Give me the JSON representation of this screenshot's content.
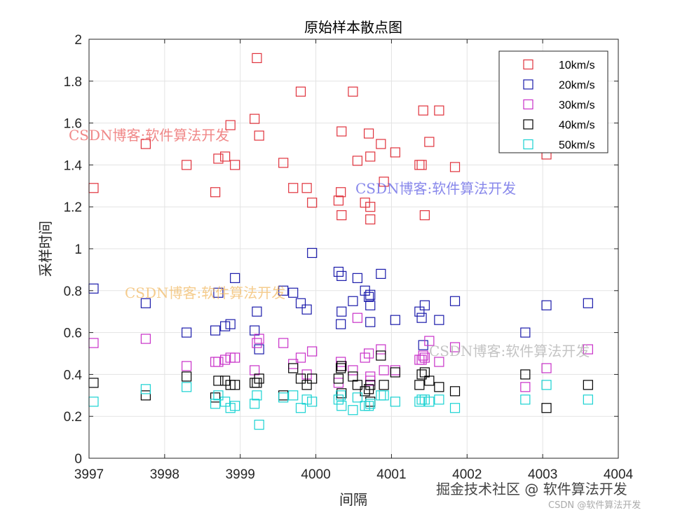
{
  "chart_data": {
    "type": "scatter",
    "title": "原始样本散点图",
    "xlabel": "间隔",
    "ylabel": "采样时间",
    "xlim": [
      3997,
      4004
    ],
    "ylim": [
      0,
      2
    ],
    "xticks": [
      3997,
      3998,
      3999,
      4000,
      4001,
      4002,
      4003,
      4004
    ],
    "yticks": [
      0,
      0.2,
      0.4,
      0.6,
      0.8,
      1,
      1.2,
      1.4,
      1.6,
      1.8,
      2
    ],
    "grid": true,
    "legend_position": "top-right",
    "marker": "square",
    "series": [
      {
        "name": "10km/s",
        "color": "#e0323c",
        "points": [
          [
            3997.06,
            1.29
          ],
          [
            3997.75,
            1.5
          ],
          [
            3998.29,
            1.4
          ],
          [
            3998.67,
            1.27
          ],
          [
            3998.71,
            1.43
          ],
          [
            3998.8,
            1.44
          ],
          [
            3998.87,
            1.59
          ],
          [
            3998.93,
            1.4
          ],
          [
            3999.19,
            1.62
          ],
          [
            3999.22,
            1.91
          ],
          [
            3999.25,
            1.54
          ],
          [
            3999.57,
            1.41
          ],
          [
            3999.7,
            1.29
          ],
          [
            3999.8,
            1.75
          ],
          [
            3999.88,
            1.29
          ],
          [
            3999.95,
            1.22
          ],
          [
            4000.3,
            1.23
          ],
          [
            4000.33,
            1.27
          ],
          [
            4000.34,
            1.56
          ],
          [
            4000.34,
            1.16
          ],
          [
            4000.49,
            1.75
          ],
          [
            4000.55,
            1.42
          ],
          [
            4000.65,
            1.22
          ],
          [
            4000.7,
            1.55
          ],
          [
            4000.72,
            1.44
          ],
          [
            4000.72,
            1.2
          ],
          [
            4000.72,
            1.14
          ],
          [
            4000.86,
            1.5
          ],
          [
            4000.9,
            1.32
          ],
          [
            4001.05,
            1.46
          ],
          [
            4001.37,
            1.4
          ],
          [
            4001.4,
            1.4
          ],
          [
            4001.42,
            1.66
          ],
          [
            4001.44,
            1.16
          ],
          [
            4001.5,
            1.51
          ],
          [
            4001.63,
            1.66
          ],
          [
            4001.84,
            1.39
          ],
          [
            4003.05,
            1.45
          ]
        ]
      },
      {
        "name": "20km/s",
        "color": "#1a1aaa",
        "points": [
          [
            3997.06,
            0.81
          ],
          [
            3997.75,
            0.74
          ],
          [
            3998.29,
            0.6
          ],
          [
            3998.67,
            0.61
          ],
          [
            3998.71,
            0.79
          ],
          [
            3998.8,
            0.63
          ],
          [
            3998.87,
            0.64
          ],
          [
            3998.93,
            0.86
          ],
          [
            3999.19,
            0.61
          ],
          [
            3999.22,
            0.7
          ],
          [
            3999.25,
            0.52
          ],
          [
            3999.57,
            0.8
          ],
          [
            3999.7,
            0.79
          ],
          [
            3999.8,
            0.74
          ],
          [
            3999.88,
            0.71
          ],
          [
            3999.95,
            0.98
          ],
          [
            4000.3,
            0.89
          ],
          [
            4000.33,
            0.64
          ],
          [
            4000.34,
            0.87
          ],
          [
            4000.34,
            0.7
          ],
          [
            4000.49,
            0.75
          ],
          [
            4000.55,
            0.86
          ],
          [
            4000.65,
            0.8
          ],
          [
            4000.7,
            0.77
          ],
          [
            4000.72,
            0.65
          ],
          [
            4000.72,
            0.73
          ],
          [
            4000.72,
            0.78
          ],
          [
            4000.86,
            0.88
          ],
          [
            4001.05,
            0.66
          ],
          [
            4001.37,
            0.7
          ],
          [
            4001.4,
            0.67
          ],
          [
            4001.42,
            0.54
          ],
          [
            4001.44,
            0.73
          ],
          [
            4001.63,
            0.66
          ],
          [
            4001.84,
            0.75
          ],
          [
            4002.77,
            0.6
          ],
          [
            4003.05,
            0.73
          ],
          [
            4003.6,
            0.74
          ]
        ]
      },
      {
        "name": "30km/s",
        "color": "#c830c8",
        "points": [
          [
            3997.06,
            0.55
          ],
          [
            3997.75,
            0.57
          ],
          [
            3998.29,
            0.44
          ],
          [
            3998.67,
            0.46
          ],
          [
            3998.71,
            0.46
          ],
          [
            3998.8,
            0.47
          ],
          [
            3998.87,
            0.48
          ],
          [
            3998.93,
            0.48
          ],
          [
            3999.19,
            0.42
          ],
          [
            3999.22,
            0.55
          ],
          [
            3999.25,
            0.57
          ],
          [
            3999.57,
            0.55
          ],
          [
            3999.7,
            0.45
          ],
          [
            3999.8,
            0.48
          ],
          [
            3999.88,
            0.4
          ],
          [
            3999.95,
            0.51
          ],
          [
            4000.3,
            0.36
          ],
          [
            4000.33,
            0.46
          ],
          [
            4000.34,
            0.44
          ],
          [
            4000.49,
            0.42
          ],
          [
            4000.55,
            0.67
          ],
          [
            4000.65,
            0.48
          ],
          [
            4000.7,
            0.5
          ],
          [
            4000.72,
            0.39
          ],
          [
            4000.72,
            0.37
          ],
          [
            4000.86,
            0.52
          ],
          [
            4000.9,
            0.42
          ],
          [
            4001.05,
            0.42
          ],
          [
            4001.37,
            0.47
          ],
          [
            4001.4,
            0.47
          ],
          [
            4001.42,
            0.49
          ],
          [
            4001.44,
            0.48
          ],
          [
            4001.5,
            0.56
          ],
          [
            4001.63,
            0.46
          ],
          [
            4001.84,
            0.53
          ],
          [
            4002.77,
            0.34
          ],
          [
            4003.05,
            0.43
          ],
          [
            4003.6,
            0.52
          ]
        ]
      },
      {
        "name": "40km/s",
        "color": "#000000",
        "points": [
          [
            3997.06,
            0.36
          ],
          [
            3997.75,
            0.3
          ],
          [
            3998.29,
            0.39
          ],
          [
            3998.67,
            0.29
          ],
          [
            3998.71,
            0.37
          ],
          [
            3998.8,
            0.37
          ],
          [
            3998.87,
            0.35
          ],
          [
            3998.93,
            0.35
          ],
          [
            3999.19,
            0.36
          ],
          [
            3999.22,
            0.36
          ],
          [
            3999.25,
            0.38
          ],
          [
            3999.57,
            0.3
          ],
          [
            3999.7,
            0.43
          ],
          [
            3999.8,
            0.38
          ],
          [
            3999.88,
            0.35
          ],
          [
            3999.95,
            0.38
          ],
          [
            4000.3,
            0.38
          ],
          [
            4000.33,
            0.43
          ],
          [
            4000.34,
            0.44
          ],
          [
            4000.34,
            0.31
          ],
          [
            4000.49,
            0.39
          ],
          [
            4000.55,
            0.35
          ],
          [
            4000.65,
            0.32
          ],
          [
            4000.7,
            0.33
          ],
          [
            4000.72,
            0.35
          ],
          [
            4000.72,
            0.27
          ],
          [
            4000.86,
            0.49
          ],
          [
            4000.9,
            0.35
          ],
          [
            4001.05,
            0.41
          ],
          [
            4001.37,
            0.35
          ],
          [
            4001.4,
            0.4
          ],
          [
            4001.44,
            0.41
          ],
          [
            4001.5,
            0.37
          ],
          [
            4001.63,
            0.34
          ],
          [
            4001.84,
            0.32
          ],
          [
            4002.77,
            0.4
          ],
          [
            4003.05,
            0.24
          ],
          [
            4003.6,
            0.35
          ]
        ]
      },
      {
        "name": "50km/s",
        "color": "#19d2d2",
        "points": [
          [
            3997.06,
            0.27
          ],
          [
            3997.75,
            0.33
          ],
          [
            3998.29,
            0.34
          ],
          [
            3998.67,
            0.26
          ],
          [
            3998.71,
            0.3
          ],
          [
            3998.8,
            0.27
          ],
          [
            3998.87,
            0.24
          ],
          [
            3998.93,
            0.25
          ],
          [
            3999.19,
            0.26
          ],
          [
            3999.22,
            0.3
          ],
          [
            3999.25,
            0.16
          ],
          [
            3999.57,
            0.29
          ],
          [
            3999.7,
            0.3
          ],
          [
            3999.8,
            0.24
          ],
          [
            3999.88,
            0.28
          ],
          [
            3999.95,
            0.27
          ],
          [
            4000.3,
            0.28
          ],
          [
            4000.33,
            0.3
          ],
          [
            4000.34,
            0.25
          ],
          [
            4000.49,
            0.23
          ],
          [
            4000.55,
            0.29
          ],
          [
            4000.65,
            0.25
          ],
          [
            4000.7,
            0.25
          ],
          [
            4000.72,
            0.26
          ],
          [
            4000.86,
            0.3
          ],
          [
            4000.9,
            0.3
          ],
          [
            4001.05,
            0.27
          ],
          [
            4001.37,
            0.27
          ],
          [
            4001.4,
            0.28
          ],
          [
            4001.44,
            0.28
          ],
          [
            4001.5,
            0.27
          ],
          [
            4001.63,
            0.28
          ],
          [
            4001.84,
            0.24
          ],
          [
            4002.77,
            0.28
          ],
          [
            4003.05,
            0.35
          ],
          [
            4003.6,
            0.28
          ]
        ]
      }
    ]
  },
  "watermarks": [
    {
      "text": "CSDN博客:软件算法开发",
      "color": "#e84848"
    },
    {
      "text": "CSDN博客:软件算法开发",
      "color": "#4848e0"
    },
    {
      "text": "CSDN博客:软件算法开发",
      "color": "#f0b050"
    },
    {
      "text": "CSDN博客:软件算法开发",
      "color": "#b0b0b0"
    }
  ],
  "footer": {
    "main": "掘金技术社区 @ 软件算法开发",
    "sub": "CSDN @软件算法开发"
  }
}
